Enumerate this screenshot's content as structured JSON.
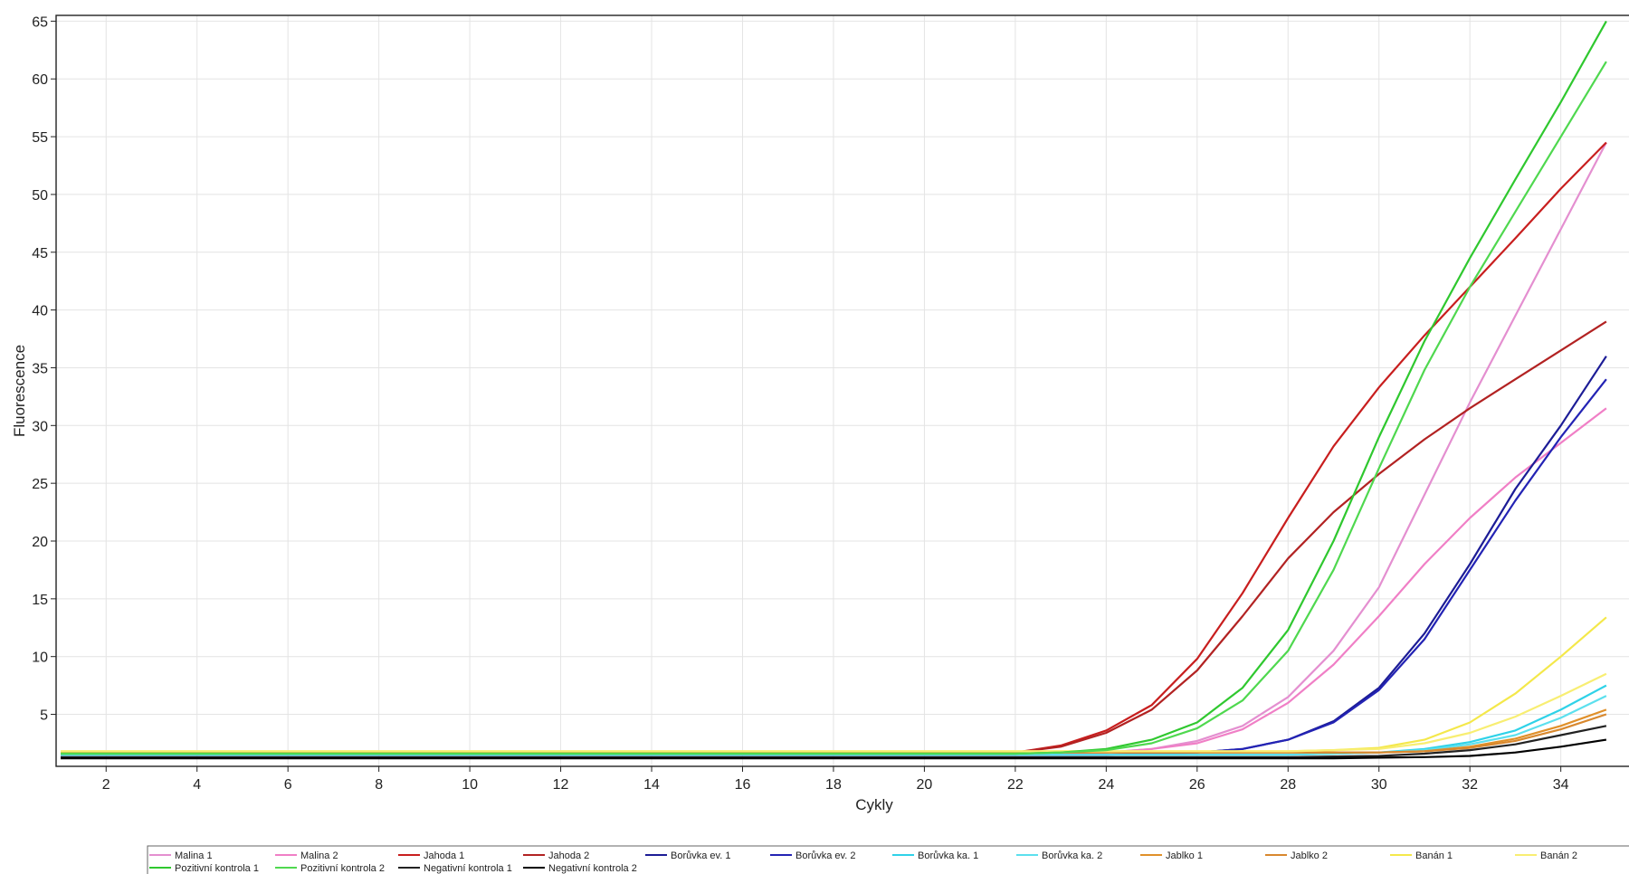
{
  "chart_data": {
    "type": "line",
    "xlabel": "Cykly",
    "ylabel": "Fluorescence",
    "xlim": [
      0.9,
      35.5
    ],
    "ylim": [
      0.5,
      65.5
    ],
    "x_ticks": [
      2,
      4,
      6,
      8,
      10,
      12,
      14,
      16,
      18,
      20,
      22,
      24,
      26,
      28,
      30,
      32,
      34
    ],
    "y_ticks": [
      5,
      10,
      15,
      20,
      25,
      30,
      35,
      40,
      45,
      50,
      55,
      60,
      65
    ],
    "grid": true,
    "legend_position": "bottom",
    "x": [
      1,
      2,
      3,
      4,
      5,
      6,
      7,
      8,
      9,
      10,
      11,
      12,
      13,
      14,
      15,
      16,
      17,
      18,
      19,
      20,
      21,
      22,
      23,
      24,
      25,
      26,
      27,
      28,
      29,
      30,
      31,
      32,
      33,
      34,
      35
    ],
    "series": [
      {
        "name": "Malina 1",
        "color": "#e48fd0",
        "values": [
          1.6,
          1.6,
          1.6,
          1.6,
          1.6,
          1.6,
          1.6,
          1.6,
          1.6,
          1.6,
          1.6,
          1.6,
          1.6,
          1.6,
          1.6,
          1.6,
          1.6,
          1.6,
          1.6,
          1.6,
          1.6,
          1.6,
          1.6,
          1.7,
          2.0,
          2.7,
          4.0,
          6.5,
          10.5,
          16.0,
          24.0,
          32.0,
          39.5,
          47.0,
          54.5
        ]
      },
      {
        "name": "Malina 2",
        "color": "#f07fc6",
        "values": [
          1.6,
          1.6,
          1.6,
          1.6,
          1.6,
          1.6,
          1.6,
          1.6,
          1.6,
          1.6,
          1.6,
          1.6,
          1.6,
          1.6,
          1.6,
          1.6,
          1.6,
          1.6,
          1.6,
          1.6,
          1.6,
          1.6,
          1.6,
          1.7,
          2.0,
          2.5,
          3.7,
          6.0,
          9.3,
          13.5,
          18.0,
          22.0,
          25.5,
          28.5,
          31.5
        ]
      },
      {
        "name": "Jahoda 1",
        "color": "#c81e1e",
        "values": [
          1.6,
          1.6,
          1.6,
          1.6,
          1.6,
          1.6,
          1.6,
          1.6,
          1.6,
          1.6,
          1.6,
          1.6,
          1.6,
          1.6,
          1.6,
          1.6,
          1.6,
          1.6,
          1.6,
          1.6,
          1.6,
          1.7,
          2.3,
          3.6,
          5.8,
          9.8,
          15.5,
          22.0,
          28.2,
          33.3,
          37.8,
          42.0,
          46.2,
          50.5,
          54.5
        ]
      },
      {
        "name": "Jahoda 2",
        "color": "#b22222",
        "values": [
          1.6,
          1.6,
          1.6,
          1.6,
          1.6,
          1.6,
          1.6,
          1.6,
          1.6,
          1.6,
          1.6,
          1.6,
          1.6,
          1.6,
          1.6,
          1.6,
          1.6,
          1.6,
          1.6,
          1.6,
          1.6,
          1.7,
          2.2,
          3.4,
          5.4,
          8.8,
          13.5,
          18.5,
          22.5,
          25.8,
          28.8,
          31.5,
          34.0,
          36.5,
          39.0
        ]
      },
      {
        "name": "Borůvka ev. 1",
        "color": "#1c1c96",
        "values": [
          1.5,
          1.5,
          1.5,
          1.5,
          1.5,
          1.5,
          1.5,
          1.5,
          1.5,
          1.5,
          1.5,
          1.5,
          1.5,
          1.5,
          1.5,
          1.5,
          1.5,
          1.5,
          1.5,
          1.5,
          1.5,
          1.5,
          1.5,
          1.5,
          1.6,
          1.7,
          2.0,
          2.8,
          4.4,
          7.3,
          12.0,
          18.0,
          24.5,
          30.0,
          36.0
        ]
      },
      {
        "name": "Borůvka ev. 2",
        "color": "#2323b4",
        "values": [
          1.5,
          1.5,
          1.5,
          1.5,
          1.5,
          1.5,
          1.5,
          1.5,
          1.5,
          1.5,
          1.5,
          1.5,
          1.5,
          1.5,
          1.5,
          1.5,
          1.5,
          1.5,
          1.5,
          1.5,
          1.5,
          1.5,
          1.5,
          1.5,
          1.6,
          1.7,
          2.0,
          2.8,
          4.3,
          7.1,
          11.5,
          17.5,
          23.5,
          29.0,
          34.0
        ]
      },
      {
        "name": "Borůvka ka. 1",
        "color": "#2fd2e8",
        "values": [
          1.5,
          1.5,
          1.5,
          1.5,
          1.5,
          1.5,
          1.5,
          1.5,
          1.5,
          1.5,
          1.5,
          1.5,
          1.5,
          1.5,
          1.5,
          1.5,
          1.5,
          1.5,
          1.5,
          1.5,
          1.5,
          1.5,
          1.5,
          1.5,
          1.5,
          1.5,
          1.5,
          1.5,
          1.6,
          1.7,
          2.0,
          2.6,
          3.6,
          5.4,
          7.5
        ]
      },
      {
        "name": "Borůvka ka. 2",
        "color": "#5ce0ee",
        "values": [
          1.5,
          1.5,
          1.5,
          1.5,
          1.5,
          1.5,
          1.5,
          1.5,
          1.5,
          1.5,
          1.5,
          1.5,
          1.5,
          1.5,
          1.5,
          1.5,
          1.5,
          1.5,
          1.5,
          1.5,
          1.5,
          1.5,
          1.5,
          1.5,
          1.5,
          1.5,
          1.5,
          1.5,
          1.6,
          1.7,
          1.9,
          2.4,
          3.2,
          4.7,
          6.6
        ]
      },
      {
        "name": "Jablko 1",
        "color": "#e0902a",
        "values": [
          1.7,
          1.7,
          1.7,
          1.7,
          1.7,
          1.7,
          1.7,
          1.7,
          1.7,
          1.7,
          1.7,
          1.7,
          1.7,
          1.7,
          1.7,
          1.7,
          1.7,
          1.7,
          1.7,
          1.7,
          1.7,
          1.7,
          1.7,
          1.7,
          1.7,
          1.7,
          1.7,
          1.7,
          1.7,
          1.7,
          1.8,
          2.2,
          2.9,
          4.0,
          5.4
        ]
      },
      {
        "name": "Jablko 2",
        "color": "#d8882e",
        "values": [
          1.7,
          1.7,
          1.7,
          1.7,
          1.7,
          1.7,
          1.7,
          1.7,
          1.7,
          1.7,
          1.7,
          1.7,
          1.7,
          1.7,
          1.7,
          1.7,
          1.7,
          1.7,
          1.7,
          1.7,
          1.7,
          1.7,
          1.7,
          1.7,
          1.7,
          1.7,
          1.7,
          1.7,
          1.7,
          1.7,
          1.8,
          2.1,
          2.7,
          3.7,
          5.0
        ]
      },
      {
        "name": "Banán 1",
        "color": "#f4e84a",
        "values": [
          1.8,
          1.8,
          1.8,
          1.8,
          1.8,
          1.8,
          1.8,
          1.8,
          1.8,
          1.8,
          1.8,
          1.8,
          1.8,
          1.8,
          1.8,
          1.8,
          1.8,
          1.8,
          1.8,
          1.8,
          1.8,
          1.8,
          1.8,
          1.8,
          1.8,
          1.8,
          1.8,
          1.8,
          1.9,
          2.1,
          2.8,
          4.3,
          6.8,
          10.0,
          13.4
        ]
      },
      {
        "name": "Banán 2",
        "color": "#f8ee72",
        "values": [
          1.8,
          1.8,
          1.8,
          1.8,
          1.8,
          1.8,
          1.8,
          1.8,
          1.8,
          1.8,
          1.8,
          1.8,
          1.8,
          1.8,
          1.8,
          1.8,
          1.8,
          1.8,
          1.8,
          1.8,
          1.8,
          1.8,
          1.8,
          1.8,
          1.8,
          1.8,
          1.8,
          1.8,
          1.9,
          2.0,
          2.5,
          3.4,
          4.8,
          6.6,
          8.5
        ]
      },
      {
        "name": "Pozitivní kontrola 1",
        "color": "#2fc82f",
        "values": [
          1.6,
          1.6,
          1.6,
          1.6,
          1.6,
          1.6,
          1.6,
          1.6,
          1.6,
          1.6,
          1.6,
          1.6,
          1.6,
          1.6,
          1.6,
          1.6,
          1.6,
          1.6,
          1.6,
          1.6,
          1.6,
          1.6,
          1.7,
          2.0,
          2.8,
          4.3,
          7.3,
          12.3,
          20.0,
          29.0,
          37.3,
          44.5,
          51.3,
          58.0,
          65.0
        ]
      },
      {
        "name": "Pozitivní kontrola 2",
        "color": "#4fd84f",
        "values": [
          1.6,
          1.6,
          1.6,
          1.6,
          1.6,
          1.6,
          1.6,
          1.6,
          1.6,
          1.6,
          1.6,
          1.6,
          1.6,
          1.6,
          1.6,
          1.6,
          1.6,
          1.6,
          1.6,
          1.6,
          1.6,
          1.6,
          1.7,
          1.9,
          2.5,
          3.8,
          6.2,
          10.5,
          17.5,
          26.3,
          34.8,
          42.0,
          48.5,
          55.0,
          61.5
        ]
      },
      {
        "name": "Negativní kontrola 1",
        "color": "#222222",
        "values": [
          1.3,
          1.3,
          1.3,
          1.3,
          1.3,
          1.3,
          1.3,
          1.3,
          1.3,
          1.3,
          1.3,
          1.3,
          1.3,
          1.3,
          1.3,
          1.3,
          1.3,
          1.3,
          1.3,
          1.3,
          1.3,
          1.3,
          1.3,
          1.3,
          1.3,
          1.3,
          1.3,
          1.3,
          1.35,
          1.4,
          1.6,
          1.9,
          2.4,
          3.2,
          4.0
        ]
      },
      {
        "name": "Negativní kontrola 2",
        "color": "#000000",
        "values": [
          1.2,
          1.2,
          1.2,
          1.2,
          1.2,
          1.2,
          1.2,
          1.2,
          1.2,
          1.2,
          1.2,
          1.2,
          1.2,
          1.2,
          1.2,
          1.2,
          1.2,
          1.2,
          1.2,
          1.2,
          1.2,
          1.2,
          1.2,
          1.2,
          1.2,
          1.2,
          1.2,
          1.2,
          1.2,
          1.25,
          1.3,
          1.4,
          1.7,
          2.2,
          2.8
        ]
      }
    ]
  }
}
